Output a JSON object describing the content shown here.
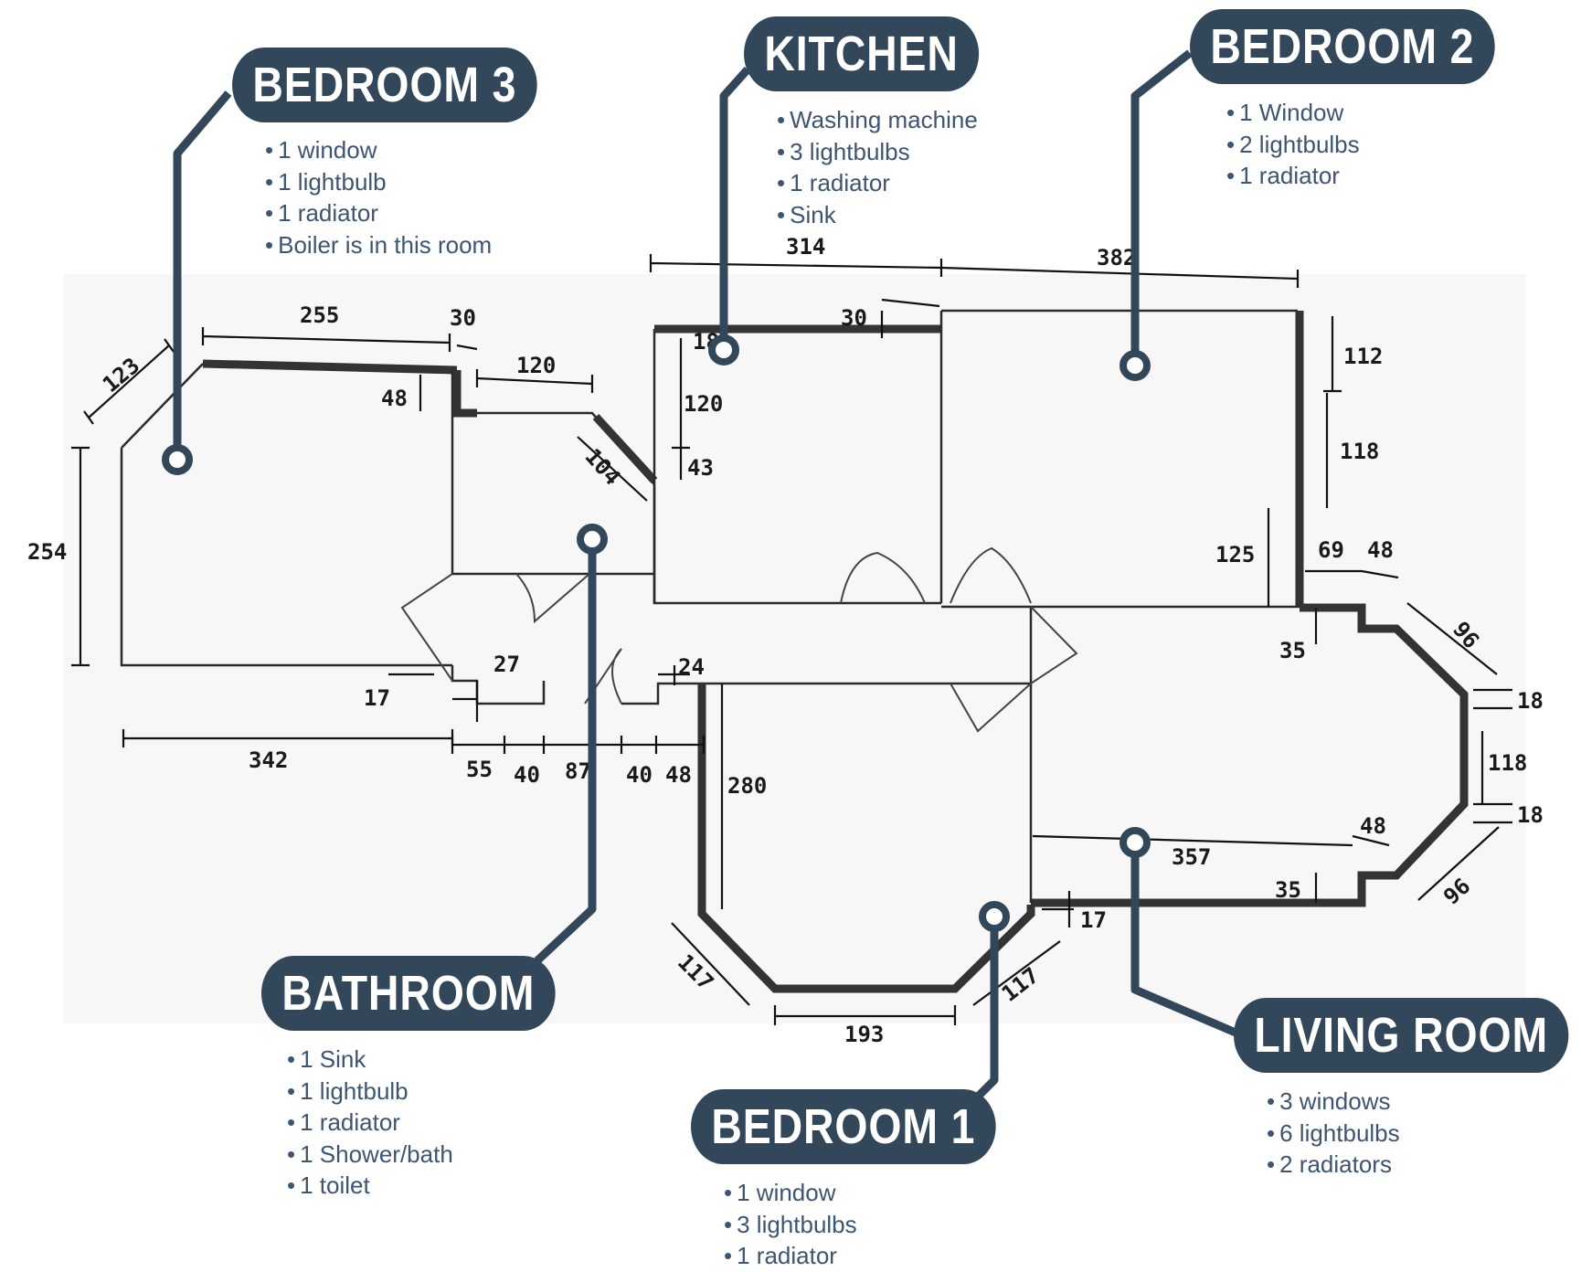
{
  "colors": {
    "label_bg": "#33475b",
    "list_text": "#3d5573",
    "wall": "#333333"
  },
  "rooms": {
    "bedroom3": {
      "label": "BEDROOM 3",
      "items": [
        "1 window",
        "1 lightbulb",
        "1 radiator",
        "Boiler is in this room"
      ]
    },
    "kitchen": {
      "label": "KITCHEN",
      "items": [
        "Washing machine",
        "3 lightbulbs",
        "1 radiator",
        "Sink"
      ]
    },
    "bedroom2": {
      "label": "BEDROOM 2",
      "items": [
        "1 Window",
        "2 lightbulbs",
        "1 radiator"
      ]
    },
    "bathroom": {
      "label": "BATHROOM",
      "items": [
        "1 Sink",
        "1 lightbulb",
        "1 radiator",
        "1 Shower/bath",
        "1 toilet"
      ]
    },
    "bedroom1": {
      "label": "BEDROOM 1",
      "items": [
        "1 window",
        "3 lightbulbs",
        "1 radiator"
      ]
    },
    "living": {
      "label": "LIVING ROOM",
      "items": [
        "3 windows",
        "6 lightbulbs",
        "2 radiators"
      ]
    }
  },
  "dimensions": {
    "d123": "123",
    "d255": "255",
    "d30a": "30",
    "d120a": "120",
    "d48a": "48",
    "d104": "104",
    "d254": "254",
    "d342": "342",
    "d17a": "17",
    "d27": "27",
    "d55": "55",
    "d40a": "40",
    "d87": "87",
    "d40b": "40",
    "d48b": "48",
    "d24": "24",
    "d314": "314",
    "d382": "382",
    "d30b": "30",
    "d18a": "18",
    "d120b": "120",
    "d43": "43",
    "d112": "112",
    "d118a": "118",
    "d125": "125",
    "d69": "69",
    "d48c": "48",
    "d35a": "35",
    "d96a": "96",
    "d18b": "18",
    "d118b": "118",
    "d18c": "18",
    "d48d": "48",
    "d357": "357",
    "d35b": "35",
    "d96b": "96",
    "d17b": "17",
    "d280": "280",
    "d117a": "117",
    "d193": "193",
    "d117b": "117"
  }
}
